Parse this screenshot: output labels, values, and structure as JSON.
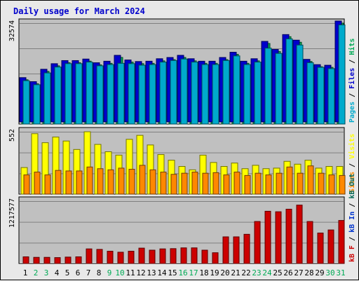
{
  "title": "Daily usage for March 2024",
  "colors": {
    "pages": "#00aacc",
    "files": "#0000cc",
    "hits": "#00aa55",
    "visits": "#ffff00",
    "sites": "#ff8800",
    "kb_f": "#cc0000",
    "kb_in": "#0033cc",
    "kb_out": "#006655",
    "weekend_day": "#00aa55",
    "weekday_day": "#000000"
  },
  "chart_data": [
    {
      "type": "bar",
      "panel": "hits-files-pages",
      "ymax_label": "32574",
      "ylim": [
        0,
        32574
      ],
      "axis_label_parts": [
        {
          "text": "Pages",
          "color": "#00aacc"
        },
        {
          "text": " / ",
          "color": "#000000"
        },
        {
          "text": "Files",
          "color": "#0000cc"
        },
        {
          "text": " / ",
          "color": "#000000"
        },
        {
          "text": "Hits",
          "color": "#00aa55"
        }
      ],
      "categories": [
        "1",
        "2",
        "3",
        "4",
        "5",
        "6",
        "7",
        "8",
        "9",
        "10",
        "11",
        "12",
        "13",
        "14",
        "15",
        "16",
        "17",
        "18",
        "19",
        "20",
        "21",
        "22",
        "23",
        "24",
        "25",
        "26",
        "27",
        "28",
        "29",
        "30",
        "31"
      ],
      "series": [
        {
          "name": "Hits",
          "values": [
            14300,
            13000,
            17000,
            18800,
            19800,
            19800,
            20300,
            19100,
            19600,
            21500,
            20000,
            19500,
            19600,
            20400,
            20800,
            21500,
            20400,
            19600,
            19600,
            20800,
            22500,
            19600,
            20400,
            26000,
            23400,
            28200,
            26400,
            20200,
            18500,
            18300,
            32574
          ]
        },
        {
          "name": "Files",
          "values": [
            14300,
            13000,
            17000,
            18800,
            19800,
            19800,
            20300,
            19100,
            19600,
            21500,
            20000,
            19500,
            19600,
            20400,
            20800,
            21500,
            20400,
            19600,
            19600,
            20800,
            22500,
            19600,
            20400,
            26000,
            23400,
            28200,
            26400,
            20200,
            18500,
            18300,
            32574
          ]
        },
        {
          "name": "Pages",
          "values": [
            14000,
            12700,
            16500,
            18400,
            19500,
            19500,
            20000,
            18800,
            19200,
            19600,
            19500,
            19000,
            19200,
            20000,
            20500,
            21000,
            20000,
            19200,
            19200,
            20500,
            22000,
            19200,
            20000,
            24500,
            22800,
            27500,
            25500,
            19800,
            18300,
            17900,
            32000
          ]
        }
      ]
    },
    {
      "type": "bar",
      "panel": "visits-sites",
      "ymax_label": "552",
      "ylim": [
        0,
        552
      ],
      "axis_label_parts": [
        {
          "text": "Sites",
          "color": "#ff8800"
        },
        {
          "text": " / ",
          "color": "#000000"
        },
        {
          "text": "Visits",
          "color": "#ffff00"
        }
      ],
      "categories": [
        "1",
        "2",
        "3",
        "4",
        "5",
        "6",
        "7",
        "8",
        "9",
        "10",
        "11",
        "12",
        "13",
        "14",
        "15",
        "16",
        "17",
        "18",
        "19",
        "20",
        "21",
        "22",
        "23",
        "24",
        "25",
        "26",
        "27",
        "28",
        "29",
        "30",
        "31"
      ],
      "series": [
        {
          "name": "Visits",
          "values": [
            235,
            535,
            455,
            505,
            470,
            395,
            552,
            440,
            375,
            345,
            485,
            520,
            435,
            350,
            300,
            245,
            215,
            345,
            280,
            245,
            275,
            225,
            255,
            225,
            230,
            290,
            265,
            300,
            230,
            245,
            245
          ]
        },
        {
          "name": "Sites",
          "values": [
            170,
            195,
            170,
            210,
            205,
            205,
            240,
            225,
            215,
            230,
            220,
            255,
            215,
            195,
            175,
            185,
            195,
            185,
            190,
            170,
            195,
            165,
            185,
            170,
            185,
            240,
            185,
            250,
            185,
            170,
            165
          ]
        }
      ]
    },
    {
      "type": "bar",
      "panel": "kbytes",
      "ymax_label": "1217577",
      "ylim": [
        0,
        1217577
      ],
      "axis_label_parts": [
        {
          "text": "kB F",
          "color": "#cc0000"
        },
        {
          "text": " / ",
          "color": "#000000"
        },
        {
          "text": "kB In",
          "color": "#0033cc"
        },
        {
          "text": " / ",
          "color": "#000000"
        },
        {
          "text": "kB Out",
          "color": "#006655"
        }
      ],
      "categories": [
        "1",
        "2",
        "3",
        "4",
        "5",
        "6",
        "7",
        "8",
        "9",
        "10",
        "11",
        "12",
        "13",
        "14",
        "15",
        "16",
        "17",
        "18",
        "19",
        "20",
        "21",
        "22",
        "23",
        "24",
        "25",
        "26",
        "27",
        "28",
        "29",
        "30",
        "31"
      ],
      "series": [
        {
          "name": "kB F",
          "values": [
            130000,
            120000,
            120000,
            115000,
            125000,
            130000,
            285000,
            275000,
            240000,
            220000,
            240000,
            300000,
            260000,
            285000,
            290000,
            305000,
            305000,
            260000,
            210000,
            520000,
            520000,
            570000,
            820000,
            1020000,
            1010000,
            1060000,
            1140000,
            820000,
            595000,
            655000,
            840000
          ]
        }
      ]
    }
  ],
  "x_days": [
    {
      "label": "1",
      "weekend": false
    },
    {
      "label": "2",
      "weekend": true
    },
    {
      "label": "3",
      "weekend": true
    },
    {
      "label": "4",
      "weekend": false
    },
    {
      "label": "5",
      "weekend": false
    },
    {
      "label": "6",
      "weekend": false
    },
    {
      "label": "7",
      "weekend": false
    },
    {
      "label": "8",
      "weekend": false
    },
    {
      "label": "9",
      "weekend": true
    },
    {
      "label": "10",
      "weekend": true
    },
    {
      "label": "11",
      "weekend": false
    },
    {
      "label": "12",
      "weekend": false
    },
    {
      "label": "13",
      "weekend": false
    },
    {
      "label": "14",
      "weekend": false
    },
    {
      "label": "15",
      "weekend": false
    },
    {
      "label": "16",
      "weekend": true
    },
    {
      "label": "17",
      "weekend": true
    },
    {
      "label": "18",
      "weekend": false
    },
    {
      "label": "19",
      "weekend": false
    },
    {
      "label": "20",
      "weekend": false
    },
    {
      "label": "21",
      "weekend": false
    },
    {
      "label": "22",
      "weekend": false
    },
    {
      "label": "23",
      "weekend": true
    },
    {
      "label": "24",
      "weekend": true
    },
    {
      "label": "25",
      "weekend": false
    },
    {
      "label": "26",
      "weekend": false
    },
    {
      "label": "27",
      "weekend": false
    },
    {
      "label": "28",
      "weekend": false
    },
    {
      "label": "29",
      "weekend": false
    },
    {
      "label": "30",
      "weekend": true
    },
    {
      "label": "31",
      "weekend": true
    }
  ]
}
